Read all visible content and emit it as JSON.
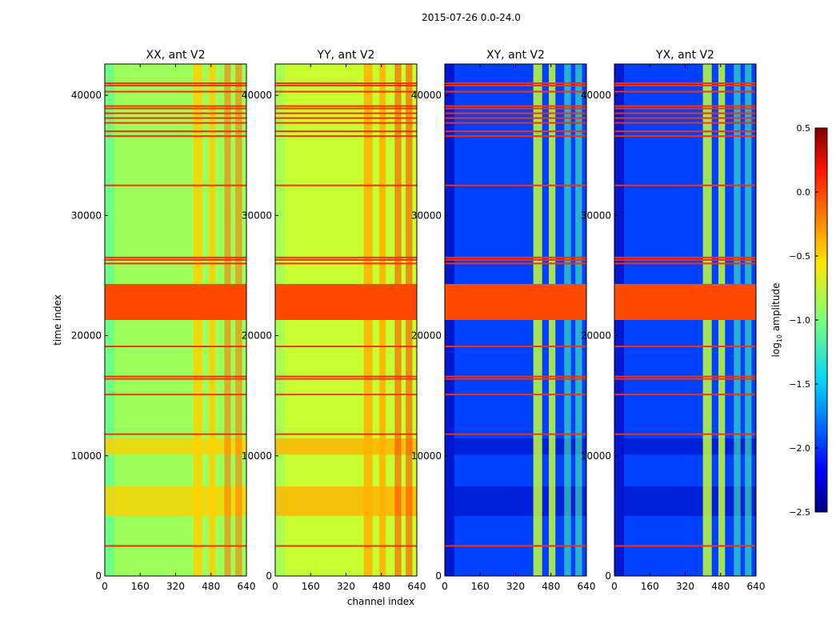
{
  "chart_data": {
    "type": "heatmap",
    "suptitle": "2015-07-26 0.0-24.0",
    "xlabel": "channel index",
    "ylabel": "time index",
    "xlim": [
      0,
      640
    ],
    "ylim": [
      0,
      42600
    ],
    "xticks": [
      0,
      160,
      320,
      480,
      640
    ],
    "yticks": [
      0,
      10000,
      20000,
      30000,
      40000
    ],
    "colorbar": {
      "label": "log10 amplitude",
      "label_main": "log",
      "label_sub": "10",
      "label_rest": " amplitude",
      "range": [
        -2.5,
        0.5
      ],
      "ticks": [
        "0.5",
        "0.0",
        "−0.5",
        "−1.0",
        "−1.5",
        "−2.0",
        "−2.5"
      ],
      "tick_values": [
        0.5,
        0.0,
        -0.5,
        -1.0,
        -1.5,
        -2.0,
        -2.5
      ],
      "colormap": "jet"
    },
    "panels": [
      {
        "title": "XX, ant V2",
        "base": "#9cff5a",
        "edge": "#6fff88",
        "bright_cols": "#ffd000",
        "hot": "#ff7a00"
      },
      {
        "title": "YY, ant V2",
        "base": "#c8ff30",
        "edge": "#a8ff50",
        "bright_cols": "#ffb000",
        "hot": "#ff4a00"
      },
      {
        "title": "XY, ant V2",
        "base": "#0040ff",
        "edge": "#0018d0",
        "bright_cols": "#c0ff3a",
        "hot": "#40ffb0"
      },
      {
        "title": "YX, ant V2",
        "base": "#0040ff",
        "edge": "#0018d0",
        "bright_cols": "#c0ff3a",
        "hot": "#40ffb0"
      }
    ],
    "bright_channel_ranges": [
      [
        400,
        440
      ],
      [
        470,
        500
      ],
      [
        540,
        570
      ],
      [
        590,
        620
      ]
    ],
    "flagged_band": [
      21300,
      24300
    ],
    "flagged_rows": [
      41000,
      40800,
      40300,
      39100,
      38900,
      38500,
      38100,
      37700,
      37000,
      36600,
      32500,
      26500,
      26300,
      26000,
      19100,
      16600,
      16400,
      15100,
      11800,
      2500
    ],
    "elevated_time_ranges": [
      [
        5000,
        7450
      ],
      [
        10100,
        11450
      ]
    ]
  }
}
